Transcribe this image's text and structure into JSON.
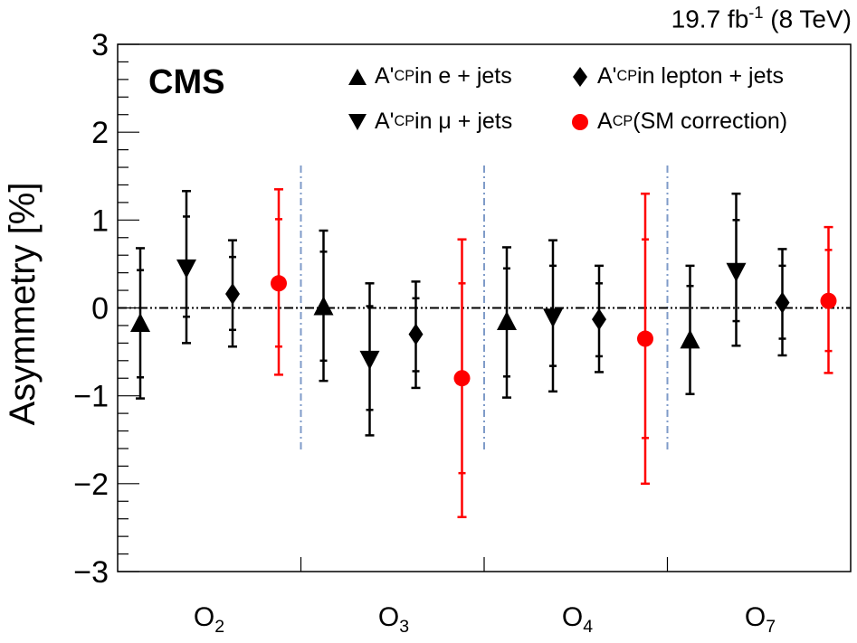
{
  "header": {
    "lumi_value": "19.7 fb",
    "lumi_exp": "-1",
    "lumi_energy": "(8 TeV)",
    "experiment": "CMS"
  },
  "chart_data": {
    "type": "scatter",
    "ylabel": "Asymmetry [%]",
    "ylim": [
      -3,
      3
    ],
    "yticks": [
      "3",
      "2",
      "1",
      "0",
      "−1",
      "−2",
      "−3"
    ],
    "categories": [
      {
        "base": "O",
        "sub": "2"
      },
      {
        "base": "O",
        "sub": "3"
      },
      {
        "base": "O",
        "sub": "4"
      },
      {
        "base": "O",
        "sub": "7"
      }
    ],
    "reference_line": 0,
    "series": [
      {
        "key": "e",
        "marker": "triangle-up",
        "color": "#000000",
        "name": {
          "pre": "A'",
          "sub": "CP",
          "post": " in e + jets"
        },
        "values": [
          -0.19,
          0.0,
          -0.17,
          -0.38
        ],
        "inner": [
          [
            -0.79,
            0.43
          ],
          [
            -0.6,
            0.64
          ],
          [
            -0.78,
            0.45
          ],
          [
            -0.98,
            0.25
          ]
        ],
        "outer": [
          [
            -1.03,
            0.68
          ],
          [
            -0.83,
            0.88
          ],
          [
            -1.02,
            0.69
          ],
          [
            -0.98,
            0.48
          ]
        ]
      },
      {
        "key": "mu",
        "marker": "triangle-down",
        "color": "#000000",
        "name": {
          "pre": "A'",
          "sub": "CP",
          "post": " in μ + jets"
        },
        "values": [
          0.47,
          -0.57,
          -0.09,
          0.43
        ],
        "inner": [
          [
            -0.1,
            1.04
          ],
          [
            -1.16,
            0.02
          ],
          [
            -0.66,
            0.48
          ],
          [
            -0.15,
            1.0
          ]
        ],
        "outer": [
          [
            -0.4,
            1.33
          ],
          [
            -1.45,
            0.28
          ],
          [
            -0.95,
            0.77
          ],
          [
            -0.43,
            1.3
          ]
        ]
      },
      {
        "key": "lep",
        "marker": "diamond",
        "color": "#000000",
        "name": {
          "pre": "A'",
          "sub": "CP",
          "post": " in lepton + jets"
        },
        "values": [
          0.16,
          -0.3,
          -0.13,
          0.06
        ],
        "inner": [
          [
            -0.25,
            0.58
          ],
          [
            -0.72,
            0.11
          ],
          [
            -0.55,
            0.28
          ],
          [
            -0.35,
            0.48
          ]
        ],
        "outer": [
          [
            -0.44,
            0.77
          ],
          [
            -0.91,
            0.3
          ],
          [
            -0.73,
            0.48
          ],
          [
            -0.54,
            0.67
          ]
        ]
      },
      {
        "key": "sm",
        "marker": "circle",
        "color": "#ff0000",
        "name": {
          "pre": "A",
          "sub": "CP",
          "post": " (SM correction)"
        },
        "values": [
          0.28,
          -0.8,
          -0.35,
          0.08
        ],
        "inner": [
          [
            -0.44,
            1.01
          ],
          [
            -1.88,
            0.28
          ],
          [
            -1.48,
            0.78
          ],
          [
            -0.49,
            0.66
          ]
        ],
        "outer": [
          [
            -0.76,
            1.35
          ],
          [
            -2.38,
            0.78
          ],
          [
            -2.0,
            1.3
          ],
          [
            -0.74,
            0.92
          ]
        ]
      }
    ]
  }
}
